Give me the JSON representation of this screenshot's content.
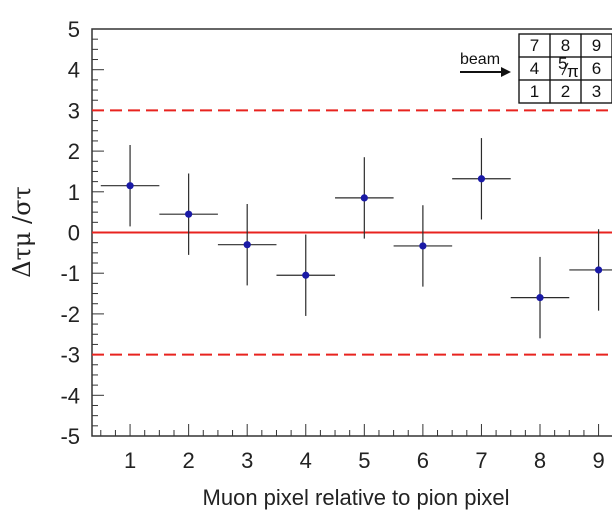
{
  "chart_data": {
    "type": "scatter",
    "xlabel": "Muon pixel relative to pion pixel",
    "ylabel": "Δτμ /στ",
    "xlim": [
      0.35,
      9.4
    ],
    "ylim": [
      -5,
      5
    ],
    "x_ticks": [
      "1",
      "2",
      "3",
      "4",
      "5",
      "6",
      "7",
      "8",
      "9"
    ],
    "y_ticks": [
      "5",
      "4",
      "3",
      "2",
      "1",
      "0",
      "-1",
      "-2",
      "-3",
      "-4",
      "-5"
    ],
    "points": [
      {
        "x": 1,
        "y": 1.15,
        "yerr": 1.0,
        "xerr": 0.5
      },
      {
        "x": 2,
        "y": 0.45,
        "yerr": 1.0,
        "xerr": 0.5
      },
      {
        "x": 3,
        "y": -0.3,
        "yerr": 1.0,
        "xerr": 0.5
      },
      {
        "x": 4,
        "y": -1.05,
        "yerr": 1.0,
        "xerr": 0.5
      },
      {
        "x": 5,
        "y": 0.85,
        "yerr": 1.0,
        "xerr": 0.5
      },
      {
        "x": 6,
        "y": -0.33,
        "yerr": 1.0,
        "xerr": 0.5
      },
      {
        "x": 7,
        "y": 1.32,
        "yerr": 1.0,
        "xerr": 0.5
      },
      {
        "x": 8,
        "y": -1.6,
        "yerr": 1.0,
        "xerr": 0.5
      },
      {
        "x": 9,
        "y": -0.92,
        "yerr": 1.0,
        "xerr": 0.5
      }
    ],
    "reference_lines": [
      {
        "y": 0,
        "style": "solid",
        "color": "#e8231f"
      },
      {
        "y": 3,
        "style": "dashed",
        "color": "#e8231f"
      },
      {
        "y": -3,
        "style": "dashed",
        "color": "#e8231f"
      }
    ],
    "marker_color": "#1a1aa6",
    "grid": false
  },
  "inset": {
    "beam_label": "beam",
    "cells": [
      [
        "7",
        "8",
        "9"
      ],
      [
        "4",
        "5/π",
        "6"
      ],
      [
        "1",
        "2",
        "3"
      ]
    ]
  }
}
